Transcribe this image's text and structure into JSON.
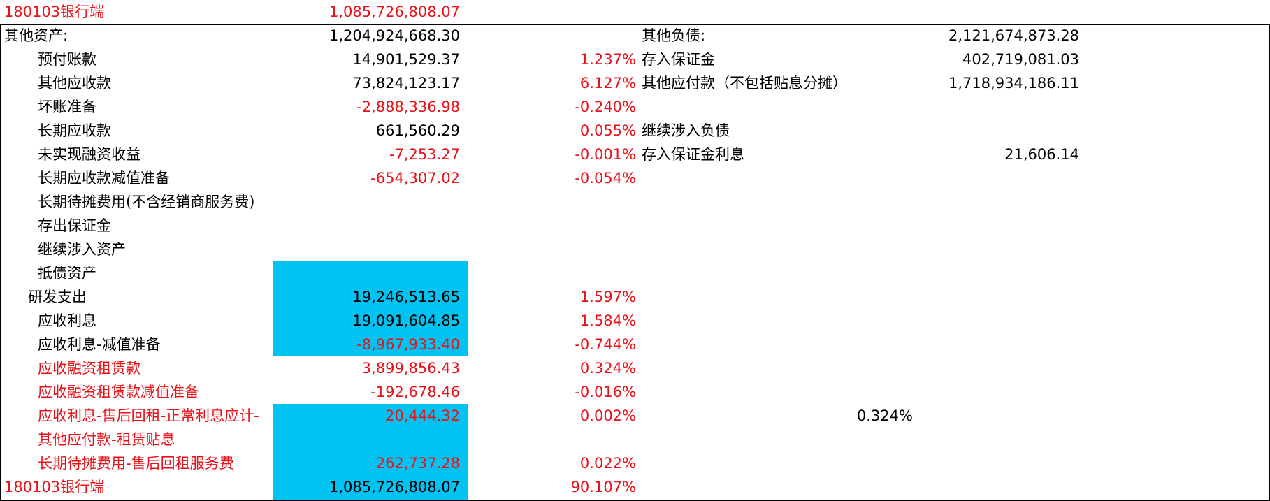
{
  "colors": {
    "red_text": "#e8121a",
    "highlight": "#00c3f2",
    "grid_border": "#000000"
  },
  "header_row": {
    "label": "180103银行端",
    "value": "1,085,726,808.07"
  },
  "other_assets": {
    "label": "其他资产:",
    "value": "1,204,924,668.30"
  },
  "other_liabilities": {
    "label": "其他负债:",
    "value": "2,121,674,873.28"
  },
  "asset_rows": [
    {
      "label": "预付账款",
      "value": "14,901,529.37",
      "pct": "1.237%"
    },
    {
      "label": "其他应收款",
      "value": "73,824,123.17",
      "pct": "6.127%"
    },
    {
      "label": "坏账准备",
      "value": "-2,888,336.98",
      "pct": "-0.240%"
    },
    {
      "label": "长期应收款",
      "value": "661,560.29",
      "pct": "0.055%"
    },
    {
      "label": "未实现融资收益",
      "value": "-7,253.27",
      "pct": "-0.001%"
    },
    {
      "label": "长期应收款减值准备",
      "value": "-654,307.02",
      "pct": "-0.054%"
    },
    {
      "label": "长期待摊费用(不含经销商服务费)",
      "value": "",
      "pct": ""
    },
    {
      "label": "存出保证金",
      "value": "",
      "pct": ""
    },
    {
      "label": "继续涉入资产",
      "value": "",
      "pct": ""
    },
    {
      "label": "抵债资产",
      "value": "",
      "pct": ""
    },
    {
      "label": "研发支出",
      "value": "19,246,513.65",
      "pct": "1.597%"
    },
    {
      "label": "应收利息",
      "value": "19,091,604.85",
      "pct": "1.584%"
    },
    {
      "label": "应收利息-减值准备",
      "value": "-8,967,933.40",
      "pct": "-0.744%"
    },
    {
      "label": "应收融资租赁款",
      "value": "3,899,856.43",
      "pct": "0.324%"
    },
    {
      "label": "应收融资租赁款减值准备",
      "value": "-192,678.46",
      "pct": "-0.016%"
    },
    {
      "label": "应收利息-售后回租-正常利息应计-",
      "value": "20,444.32",
      "pct": "0.002%",
      "extra": "0.324%"
    },
    {
      "label": "其他应付款-租赁贴息",
      "value": "",
      "pct": ""
    },
    {
      "label": "长期待摊费用-售后回租服务费",
      "value": "262,737.28",
      "pct": "0.022%"
    }
  ],
  "liability_rows": [
    {
      "label": "存入保证金",
      "value": "402,719,081.03"
    },
    {
      "label": "其他应付款（不包括贴息分摊）",
      "value": "1,718,934,186.11"
    },
    {
      "label": "",
      "value": ""
    },
    {
      "label": "继续涉入负债",
      "value": ""
    },
    {
      "label": "存入保证金利息",
      "value": "21,606.14"
    }
  ],
  "footer_row": {
    "label": "180103银行端",
    "value": "1,085,726,808.07",
    "pct": "90.107%"
  }
}
